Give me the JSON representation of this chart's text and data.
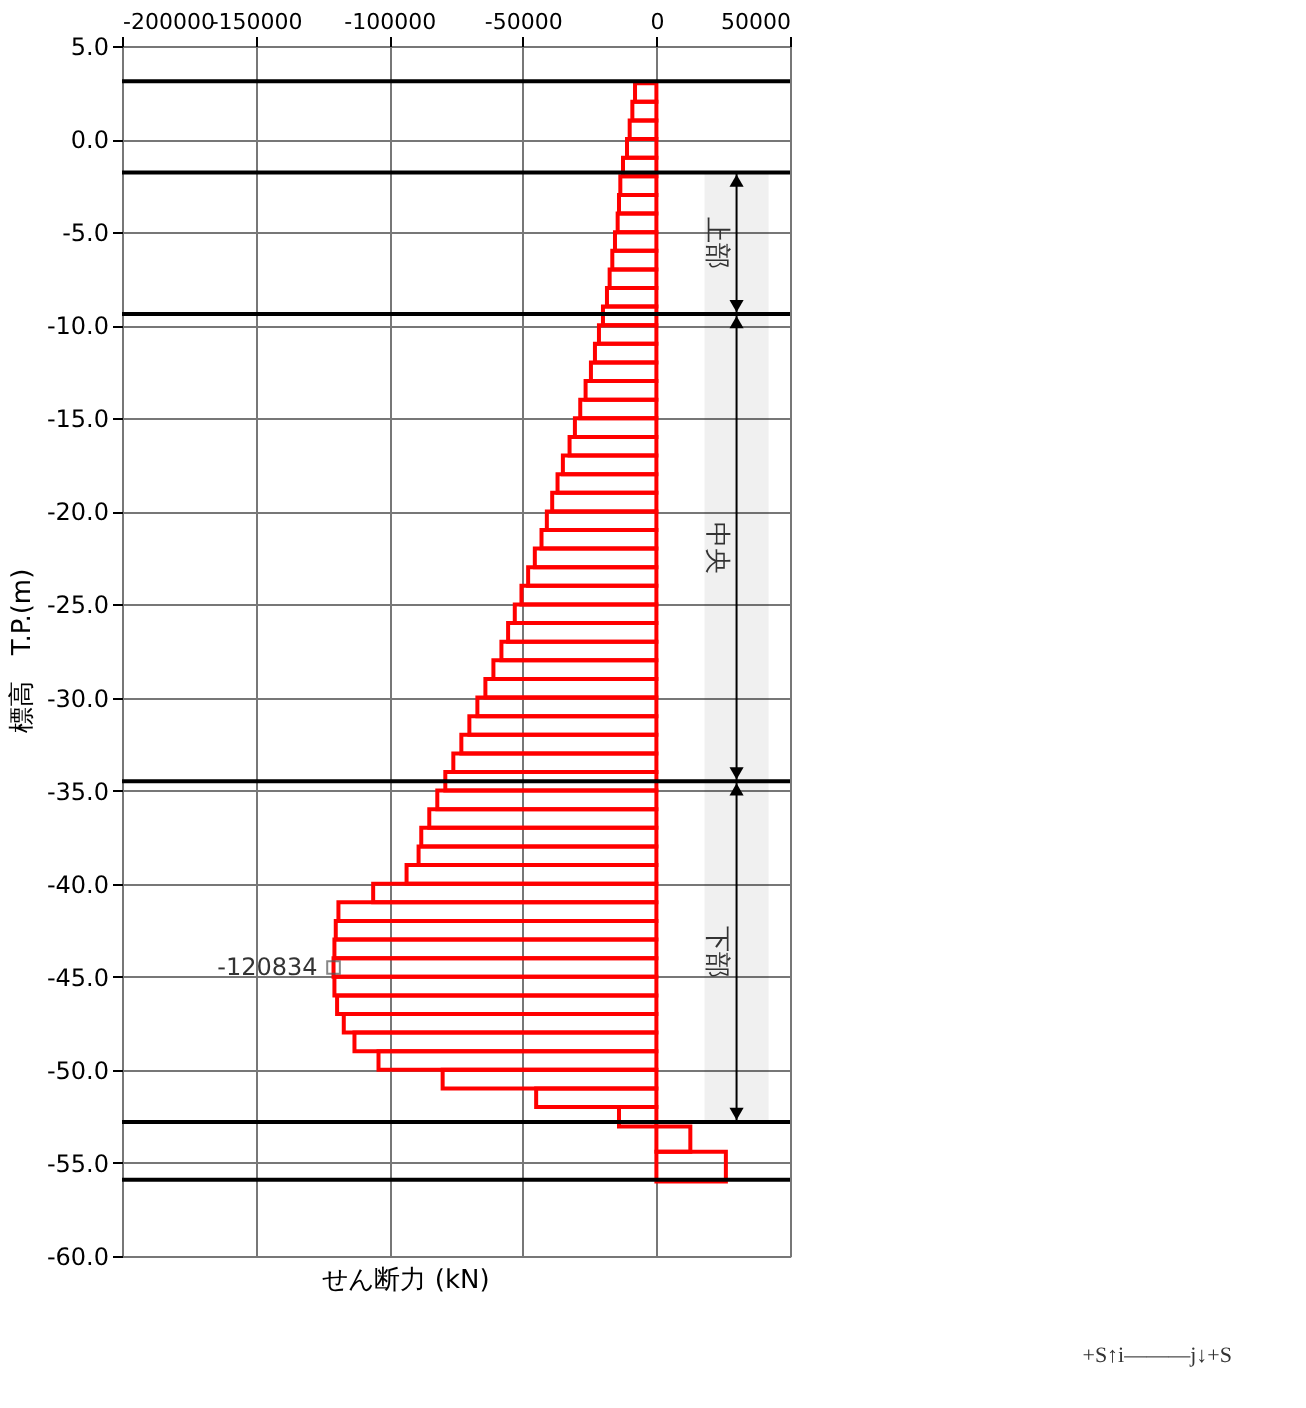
{
  "chart_data": {
    "type": "bar",
    "orientation": "horizontal",
    "color": "#ff0000",
    "xlabel": "せん断力 (kN)",
    "ylabel": "標高　T.P.(m)",
    "x": [
      2.5,
      1.5,
      0.5,
      -0.5,
      -1.5,
      -2.5,
      -3.5,
      -4.5,
      -5.5,
      -6.5,
      -7.5,
      -8.5,
      -9.5,
      -10.5,
      -11.5,
      -12.5,
      -13.5,
      -14.5,
      -15.5,
      -16.5,
      -17.5,
      -18.5,
      -19.5,
      -20.5,
      -21.5,
      -22.5,
      -23.5,
      -24.5,
      -25.5,
      -26.5,
      -27.5,
      -28.5,
      -29.5,
      -30.5,
      -31.5,
      -32.5,
      -33.5,
      -34.5,
      -35.5,
      -36.5,
      -37.5,
      -38.5,
      -39.5,
      -40.5,
      -41.5,
      -42.5,
      -43.5,
      -44.5,
      -45.5,
      -46.5,
      -47.5,
      -48.5,
      -49.5,
      -50.5,
      -51.5,
      -52.5,
      -53.6,
      -55.2
    ],
    "values": [
      -8000,
      -9000,
      -10000,
      -11000,
      -12500,
      -13500,
      -14000,
      -14500,
      -15500,
      -16500,
      -17500,
      -18500,
      -20000,
      -21500,
      -23000,
      -24500,
      -26500,
      -28500,
      -30500,
      -32500,
      -35000,
      -37000,
      -39000,
      -41000,
      -43000,
      -45500,
      -48000,
      -50500,
      -53000,
      -55500,
      -58000,
      -61000,
      -64000,
      -67000,
      -70000,
      -73000,
      -76000,
      -79000,
      -82000,
      -85000,
      -88000,
      -89000,
      -93500,
      -106000,
      -119000,
      -120000,
      -120500,
      -120834,
      -120500,
      -119500,
      -117000,
      -113000,
      -104000,
      -80000,
      -45000,
      -14000,
      12700,
      26000
    ],
    "xlim": [
      -200000,
      50000
    ],
    "xticks": [
      -200000,
      -150000,
      -100000,
      -50000,
      0,
      50000
    ],
    "ylim": [
      -60,
      5
    ],
    "yticks": [
      {
        "value": 5,
        "label": "5.0"
      },
      {
        "value": 0,
        "label": "0.0"
      },
      {
        "value": -5,
        "label": "-5.0"
      },
      {
        "value": -10,
        "label": "-10.0"
      },
      {
        "value": -15,
        "label": "-15.0"
      },
      {
        "value": -20,
        "label": "-20.0"
      },
      {
        "value": -25,
        "label": "-25.0"
      },
      {
        "value": -30,
        "label": "-30.0"
      },
      {
        "value": -35,
        "label": "-35.0"
      },
      {
        "value": -40,
        "label": "-40.0"
      },
      {
        "value": -45,
        "label": "-45.0"
      },
      {
        "value": -50,
        "label": "-50.0"
      },
      {
        "value": -55,
        "label": "-55.0"
      },
      {
        "value": -60,
        "label": "-60.0"
      }
    ],
    "grid": true,
    "ref_lines": [
      {
        "axis": "y",
        "value": 3.1,
        "color": "#000000"
      },
      {
        "axis": "y",
        "value": -1.8,
        "color": "#000000"
      },
      {
        "axis": "y",
        "value": -9.4,
        "color": "#000000"
      },
      {
        "axis": "y",
        "value": -34.5,
        "color": "#000000"
      },
      {
        "axis": "y",
        "value": -52.8,
        "color": "#000000"
      },
      {
        "axis": "y",
        "value": -55.9,
        "color": "#000000"
      }
    ],
    "bands": [
      {
        "axis": "y",
        "from": -1.8,
        "to": -9.4,
        "label": "上部",
        "color": "#000000"
      },
      {
        "axis": "y",
        "from": -9.4,
        "to": -34.5,
        "label": "中央",
        "color": "#000000"
      },
      {
        "axis": "y",
        "from": -34.5,
        "to": -52.8,
        "label": "下部",
        "color": "#000000"
      }
    ],
    "annotations": [
      {
        "text": "-120834",
        "x": -120834,
        "y": -44.5
      },
      "+S↑i———j↓+S"
    ]
  }
}
